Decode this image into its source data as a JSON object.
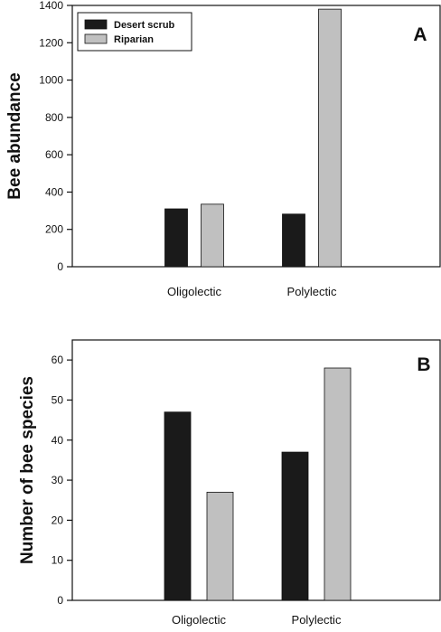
{
  "chart_data": [
    {
      "type": "bar",
      "panel_label": "A",
      "categories": [
        "Oligolectic",
        "Polylectic"
      ],
      "series": [
        {
          "name": "Desert scrub",
          "color": "#1a1a1a",
          "values": [
            310,
            282
          ]
        },
        {
          "name": "Riparian",
          "color": "#c0c0c0",
          "values": [
            335,
            1380
          ]
        }
      ],
      "ylabel": "Bee abundance",
      "xlabel": "",
      "ylim": [
        0,
        1400
      ],
      "yticks": [
        "0",
        "200",
        "400",
        "600",
        "800",
        "1000",
        "1200",
        "1400"
      ],
      "legend_position": "top-left",
      "grid": false
    },
    {
      "type": "bar",
      "panel_label": "B",
      "categories": [
        "Oligolectic",
        "Polylectic"
      ],
      "series": [
        {
          "name": "Desert scrub",
          "color": "#1a1a1a",
          "values": [
            47,
            37
          ]
        },
        {
          "name": "Riparian",
          "color": "#c0c0c0",
          "values": [
            27,
            58
          ]
        }
      ],
      "ylabel": "Number of bee species",
      "xlabel": "",
      "ylim": [
        0,
        65
      ],
      "yticks": [
        "0",
        "10",
        "20",
        "30",
        "40",
        "50",
        "60"
      ],
      "legend_position": "none",
      "grid": false
    }
  ]
}
